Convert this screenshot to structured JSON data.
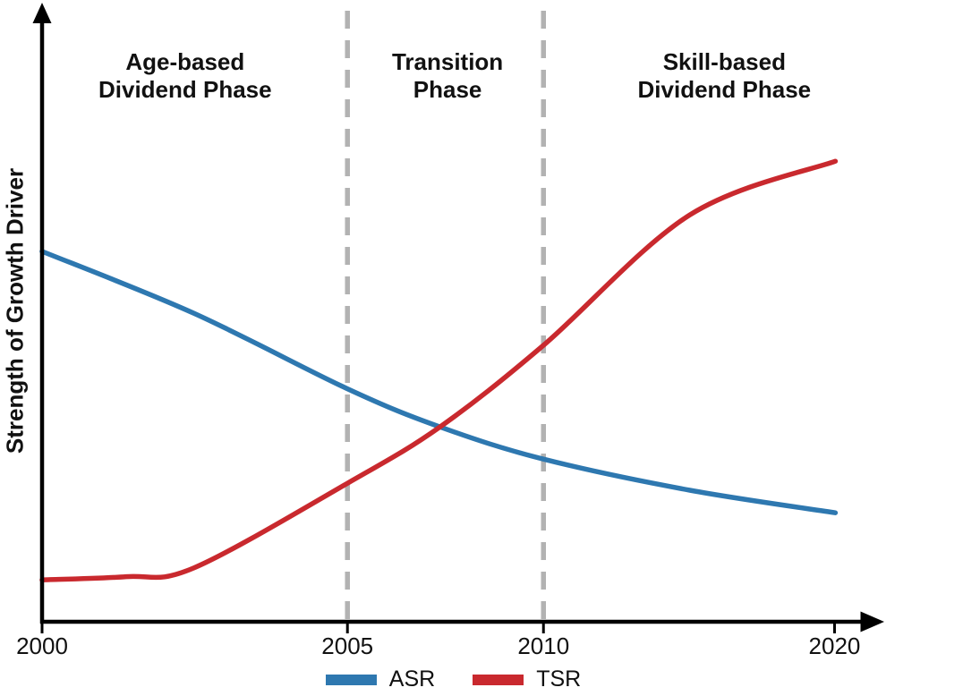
{
  "figure_title": "",
  "chart_data": {
    "type": "line",
    "title": "",
    "xlabel": "",
    "ylabel": "Strength of Growth Driver",
    "x_axis_note": "schematic timeline, non-linear year spacing",
    "y_axis_range": [
      0,
      100
    ],
    "x_axis_range_t": [
      0,
      100
    ],
    "grid": "off",
    "legend_position": "bottom-center",
    "axis_color": "#000000",
    "guide_color": "#b2b2b2",
    "text_color": "#111111",
    "x_ticks": [
      {
        "label": "2000",
        "t": 0
      },
      {
        "label": "2005",
        "t": 36.3
      },
      {
        "label": "2010",
        "t": 59.6
      },
      {
        "label": "2020",
        "t": 94.2
      }
    ],
    "dashed_guides_t": [
      36.3,
      59.6
    ],
    "phases": [
      {
        "label": "Age-based Dividend Phase",
        "label_lines": [
          "Age-based",
          "Dividend Phase"
        ],
        "center_t": 17.0,
        "range_t": [
          0,
          36.3
        ]
      },
      {
        "label": "Transition Phase",
        "label_lines": [
          "Transition",
          "Phase"
        ],
        "center_t": 48.2,
        "range_t": [
          36.3,
          59.6
        ]
      },
      {
        "label": "Skill-based Dividend Phase",
        "label_lines": [
          "Skill-based",
          "Dividend Phase"
        ],
        "center_t": 81.1,
        "range_t": [
          59.6,
          100
        ]
      }
    ],
    "crossing_point": {
      "t": 47.3,
      "strength": 36.3
    },
    "series": [
      {
        "name": "ASR",
        "color": "#2e78b0",
        "points": [
          [
            0,
            69.0
          ],
          [
            18,
            57.5
          ],
          [
            36.3,
            43.4
          ],
          [
            47.3,
            36.3
          ],
          [
            59.6,
            30.3
          ],
          [
            77,
            24.5
          ],
          [
            94.3,
            20.3
          ]
        ]
      },
      {
        "name": "TSR",
        "color": "#c9292e",
        "points": [
          [
            0,
            7.8
          ],
          [
            10,
            8.4
          ],
          [
            18,
            10.0
          ],
          [
            36.3,
            25.8
          ],
          [
            47.3,
            36.3
          ],
          [
            59.6,
            51.5
          ],
          [
            77,
            75.8
          ],
          [
            94.3,
            85.8
          ]
        ]
      }
    ]
  }
}
